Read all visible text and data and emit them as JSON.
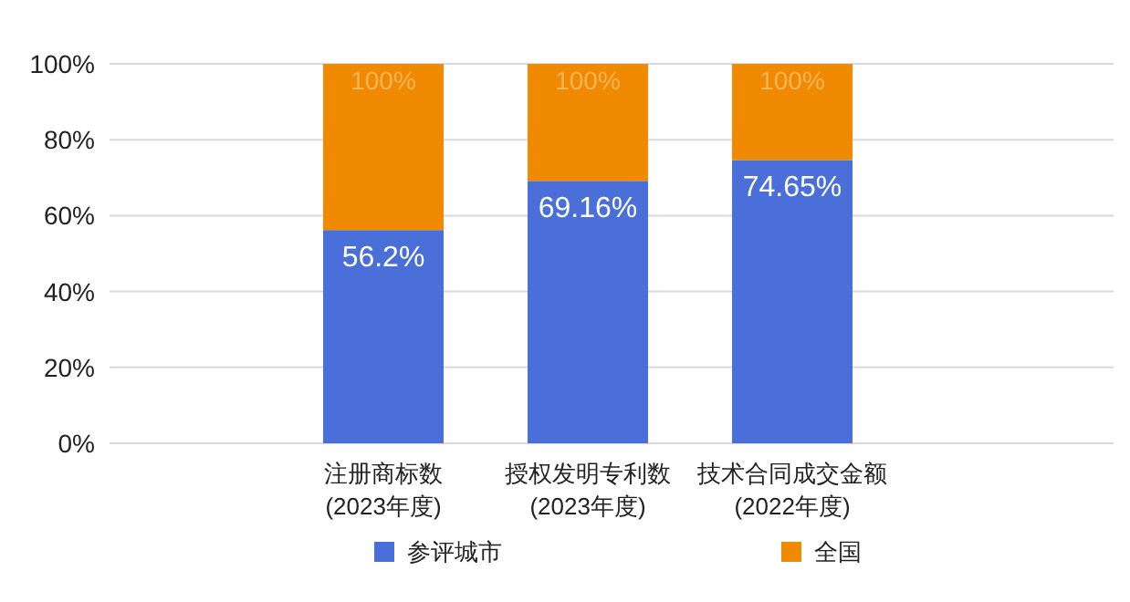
{
  "chart_data": {
    "type": "bar",
    "stacked": true,
    "categories": [
      "注册商标数\n(2023年度)",
      "授权发明专利数\n(2023年度)",
      "技术合同成交金额\n(2022年度)"
    ],
    "series": [
      {
        "name": "参评城市",
        "color": "#4a6fd8",
        "values": [
          56.2,
          69.16,
          74.65
        ],
        "value_labels": [
          "56.2%",
          "69.16%",
          "74.65%"
        ]
      },
      {
        "name": "全国",
        "color": "#f08a00",
        "values": [
          43.8,
          30.84,
          25.35
        ]
      }
    ],
    "totals": [
      "100%",
      "100%",
      "100%"
    ],
    "ylim": [
      0,
      100
    ],
    "yticks": [
      {
        "value": 0,
        "label": "0%"
      },
      {
        "value": 20,
        "label": "20%"
      },
      {
        "value": 40,
        "label": "40%"
      },
      {
        "value": 60,
        "label": "60%"
      },
      {
        "value": 80,
        "label": "80%"
      },
      {
        "value": 100,
        "label": "100%"
      }
    ],
    "grid": "y",
    "legend": "bottom"
  }
}
